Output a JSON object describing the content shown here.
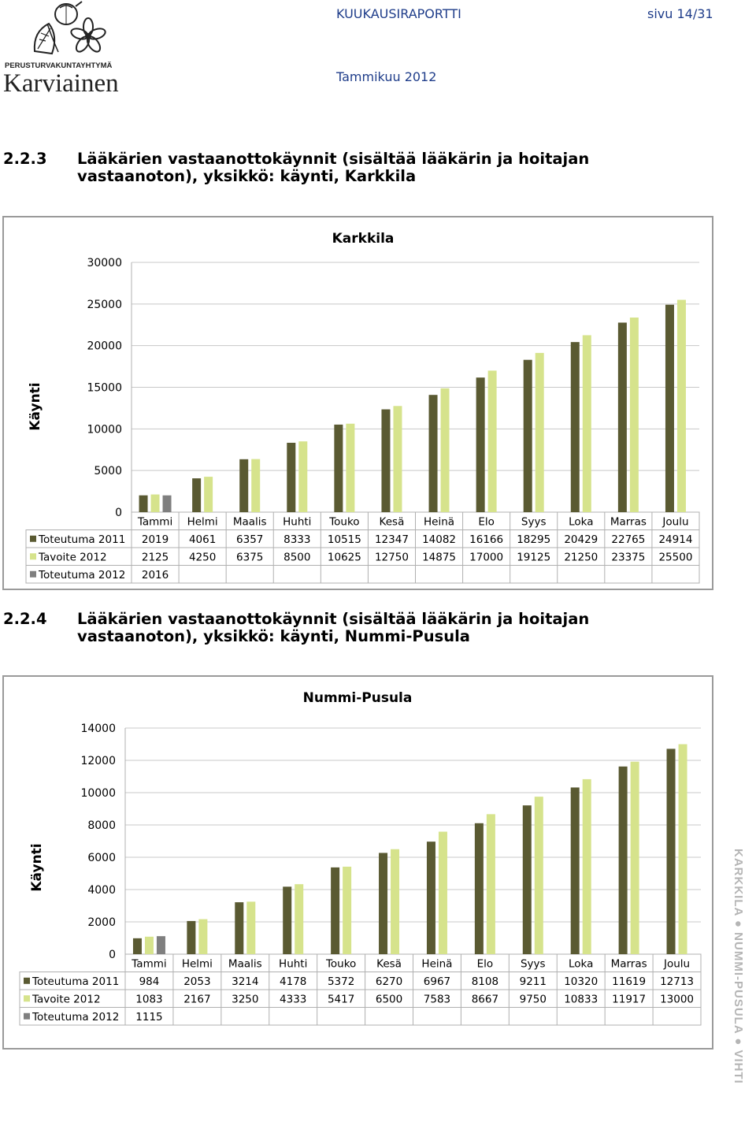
{
  "header": {
    "logo_org": "PERUSTURVAKUNTAYHTYMÄ",
    "logo_name": "Karviainen",
    "report_title": "KUUKAUSIRAPORTTI",
    "page": "sivu 14/31",
    "month": "Tammikuu 2012"
  },
  "sections": [
    {
      "number": "2.2.3",
      "line1": "Lääkärien vastaanottokäynnit (sisältää lääkärin ja hoitajan",
      "line2": "vastaanoton), yksikkö: käynti, Karkkila"
    },
    {
      "number": "2.2.4",
      "line1": "Lääkärien vastaanottokäynnit (sisältää lääkärin ja hoitajan",
      "line2": "vastaanoton), yksikkö: käynti, Nummi-Pusula"
    }
  ],
  "colors": {
    "toteutuma_2011": "#5a5a32",
    "tavoite_2012": "#d6e38c",
    "toteutuma_2012": "#7f7f7f",
    "gridline": "#c8c8c8",
    "table_border": "#b0b0b0"
  },
  "side_text": "KARKKILA ● NUMMI-PUSULA ● VIHTI",
  "chart_data": [
    {
      "type": "bar",
      "title": "Karkkila",
      "ylabel": "Käynti",
      "ylim": [
        0,
        30000
      ],
      "yticks": [
        "0",
        "5000",
        "10000",
        "15000",
        "20000",
        "25000",
        "30000"
      ],
      "grid": true,
      "legend": "data-table",
      "categories": [
        "Tammi",
        "Helmi",
        "Maalis",
        "Huhti",
        "Touko",
        "Kesä",
        "Heinä",
        "Elo",
        "Syys",
        "Loka",
        "Marras",
        "Joulu"
      ],
      "series": [
        {
          "name": "Toteutuma 2011",
          "values": [
            2019,
            4061,
            6357,
            8333,
            10515,
            12347,
            14082,
            16166,
            18295,
            20429,
            22765,
            24914
          ]
        },
        {
          "name": "Tavoite 2012",
          "values": [
            2125,
            4250,
            6375,
            8500,
            10625,
            12750,
            14875,
            17000,
            19125,
            21250,
            23375,
            25500
          ]
        },
        {
          "name": "Toteutuma 2012",
          "values": [
            2016,
            null,
            null,
            null,
            null,
            null,
            null,
            null,
            null,
            null,
            null,
            null
          ]
        }
      ],
      "table": [
        [
          "2019",
          "4061",
          "6357",
          "8333",
          "10515",
          "12347",
          "14082",
          "16166",
          "18295",
          "20429",
          "22765",
          "24914"
        ],
        [
          "2125",
          "4250",
          "6375",
          "8500",
          "10625",
          "12750",
          "14875",
          "17000",
          "19125",
          "21250",
          "23375",
          "25500"
        ],
        [
          "2016",
          "",
          "",
          "",
          "",
          "",
          "",
          "",
          "",
          "",
          "",
          ""
        ]
      ]
    },
    {
      "type": "bar",
      "title": "Nummi-Pusula",
      "ylabel": "Käynti",
      "ylim": [
        0,
        14000
      ],
      "yticks": [
        "0",
        "2000",
        "4000",
        "6000",
        "8000",
        "10000",
        "12000",
        "14000"
      ],
      "grid": true,
      "legend": "data-table",
      "categories": [
        "Tammi",
        "Helmi",
        "Maalis",
        "Huhti",
        "Touko",
        "Kesä",
        "Heinä",
        "Elo",
        "Syys",
        "Loka",
        "Marras",
        "Joulu"
      ],
      "series": [
        {
          "name": "Toteutuma 2011",
          "values": [
            984,
            2053,
            3214,
            4178,
            5372,
            6270,
            6967,
            8108,
            9211,
            10320,
            11619,
            12713
          ]
        },
        {
          "name": "Tavoite 2012",
          "values": [
            1083,
            2167,
            3250,
            4333,
            5417,
            6500,
            7583,
            8667,
            9750,
            10833,
            11917,
            13000
          ]
        },
        {
          "name": "Toteutuma 2012",
          "values": [
            1115,
            null,
            null,
            null,
            null,
            null,
            null,
            null,
            null,
            null,
            null,
            null
          ]
        }
      ],
      "table": [
        [
          "984",
          "2053",
          "3214",
          "4178",
          "5372",
          "6270",
          "6967",
          "8108",
          "9211",
          "10320",
          "11619",
          "12713"
        ],
        [
          "1083",
          "2167",
          "3250",
          "4333",
          "5417",
          "6500",
          "7583",
          "8667",
          "9750",
          "10833",
          "11917",
          "13000"
        ],
        [
          "1115",
          "",
          "",
          "",
          "",
          "",
          "",
          "",
          "",
          "",
          "",
          ""
        ]
      ]
    }
  ]
}
